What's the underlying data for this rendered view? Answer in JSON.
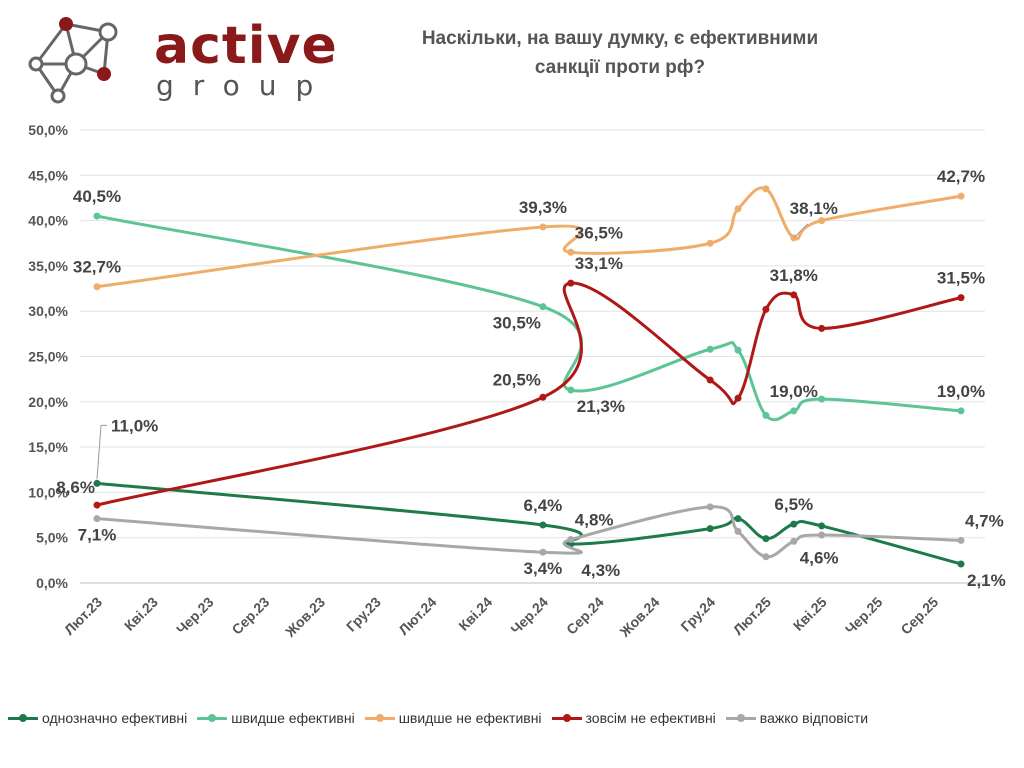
{
  "brand": {
    "name": "active",
    "sub": "group",
    "color": "#8a1a1a"
  },
  "chart_data": {
    "type": "line",
    "title": "Наскільки, на вашу думку, є ефективними санкції проти рф?",
    "title_lines": [
      "Наскільки, на вашу думку, є ефективними",
      "санкції проти рф?"
    ],
    "xlabel": "",
    "ylabel": "",
    "ylim": [
      0,
      50
    ],
    "y_ticks": [
      "0,0%",
      "5,0%",
      "10,0%",
      "15,0%",
      "20,0%",
      "25,0%",
      "30,0%",
      "35,0%",
      "40,0%",
      "45,0%",
      "50,0%"
    ],
    "x_ticks": [
      "Лют.23",
      "Кві.23",
      "Чер.23",
      "Сер.23",
      "Жов.23",
      "Гру.23",
      "Лют.24",
      "Кві.24",
      "Чер.24",
      "Сер.24",
      "Жов.24",
      "Гру.24",
      "Лют.25",
      "Кві.25",
      "Чер.25",
      "Сер.25"
    ],
    "x_months": [
      0,
      16,
      17,
      22,
      24,
      25,
      26,
      27,
      29,
      30,
      31
    ],
    "grid": true,
    "legend_position": "bottom",
    "series": [
      {
        "name": "однозначно ефективні",
        "color": "#1f7a4a",
        "values": [
          11.0,
          6.4,
          4.3,
          6.0,
          7.1,
          4.9,
          6.5,
          6.3,
          2.1
        ],
        "months": [
          0,
          16,
          17,
          22,
          23,
          24,
          25,
          26,
          31
        ]
      },
      {
        "name": "швидше ефективні",
        "color": "#5cc495",
        "values": [
          40.5,
          30.5,
          21.3,
          25.8,
          25.7,
          18.5,
          19.0,
          20.3,
          19.0
        ],
        "months": [
          0,
          16,
          17,
          22,
          23,
          24,
          25,
          26,
          31
        ]
      },
      {
        "name": "швидше не ефективні",
        "color": "#f0ad6a",
        "values": [
          32.7,
          39.3,
          36.5,
          37.5,
          41.3,
          43.5,
          38.1,
          40.0,
          42.7
        ],
        "months": [
          0,
          16,
          17,
          22,
          23,
          24,
          25,
          26,
          31
        ]
      },
      {
        "name": "зовсім не ефективні",
        "color": "#b01818",
        "values": [
          8.6,
          20.5,
          33.1,
          22.4,
          20.4,
          30.2,
          31.8,
          28.1,
          31.5
        ],
        "months": [
          0,
          16,
          17,
          22,
          23,
          24,
          25,
          26,
          31
        ]
      },
      {
        "name": "важко відповісти",
        "color": "#a8a8a8",
        "values": [
          7.1,
          3.4,
          4.8,
          8.4,
          5.7,
          2.9,
          4.6,
          5.3,
          4.7
        ],
        "months": [
          0,
          16,
          17,
          22,
          23,
          24,
          25,
          26,
          31
        ]
      }
    ],
    "data_labels": [
      {
        "series": 1,
        "point": 0,
        "text": "40,5%",
        "pos": "above"
      },
      {
        "series": 2,
        "point": 0,
        "text": "32,7%",
        "pos": "above"
      },
      {
        "series": 0,
        "point": 0,
        "text": "11,0%",
        "pos": "leader"
      },
      {
        "series": 3,
        "point": 0,
        "text": "8,6%",
        "pos": "aboveleft"
      },
      {
        "series": 4,
        "point": 0,
        "text": "7,1%",
        "pos": "below"
      },
      {
        "series": 2,
        "point": 1,
        "text": "39,3%",
        "pos": "above"
      },
      {
        "series": 1,
        "point": 1,
        "text": "30,5%",
        "pos": "belowleft"
      },
      {
        "series": 3,
        "point": 1,
        "text": "20,5%",
        "pos": "aboveleft"
      },
      {
        "series": 0,
        "point": 1,
        "text": "6,4%",
        "pos": "above"
      },
      {
        "series": 4,
        "point": 1,
        "text": "3,4%",
        "pos": "below"
      },
      {
        "series": 2,
        "point": 2,
        "text": "36,5%",
        "pos": "aboveright"
      },
      {
        "series": 3,
        "point": 2,
        "text": "33,1%",
        "pos": "aboveright"
      },
      {
        "series": 1,
        "point": 2,
        "text": "21,3%",
        "pos": "belowright"
      },
      {
        "series": 4,
        "point": 2,
        "text": "4,8%",
        "pos": "aboveright"
      },
      {
        "series": 0,
        "point": 2,
        "text": "4,3%",
        "pos": "belowright2"
      },
      {
        "series": 2,
        "point": 6,
        "text": "38,1%",
        "pos": "leader2"
      },
      {
        "series": 3,
        "point": 6,
        "text": "31,8%",
        "pos": "above"
      },
      {
        "series": 1,
        "point": 6,
        "text": "19,0%",
        "pos": "above"
      },
      {
        "series": 0,
        "point": 6,
        "text": "6,5%",
        "pos": "above"
      },
      {
        "series": 4,
        "point": 6,
        "text": "4,6%",
        "pos": "belowright"
      },
      {
        "series": 2,
        "point": 8,
        "text": "42,7%",
        "pos": "above"
      },
      {
        "series": 3,
        "point": 8,
        "text": "31,5%",
        "pos": "above"
      },
      {
        "series": 1,
        "point": 8,
        "text": "19,0%",
        "pos": "above"
      },
      {
        "series": 4,
        "point": 8,
        "text": "4,7%",
        "pos": "aboveright"
      },
      {
        "series": 0,
        "point": 8,
        "text": "2,1%",
        "pos": "belowright"
      }
    ]
  }
}
